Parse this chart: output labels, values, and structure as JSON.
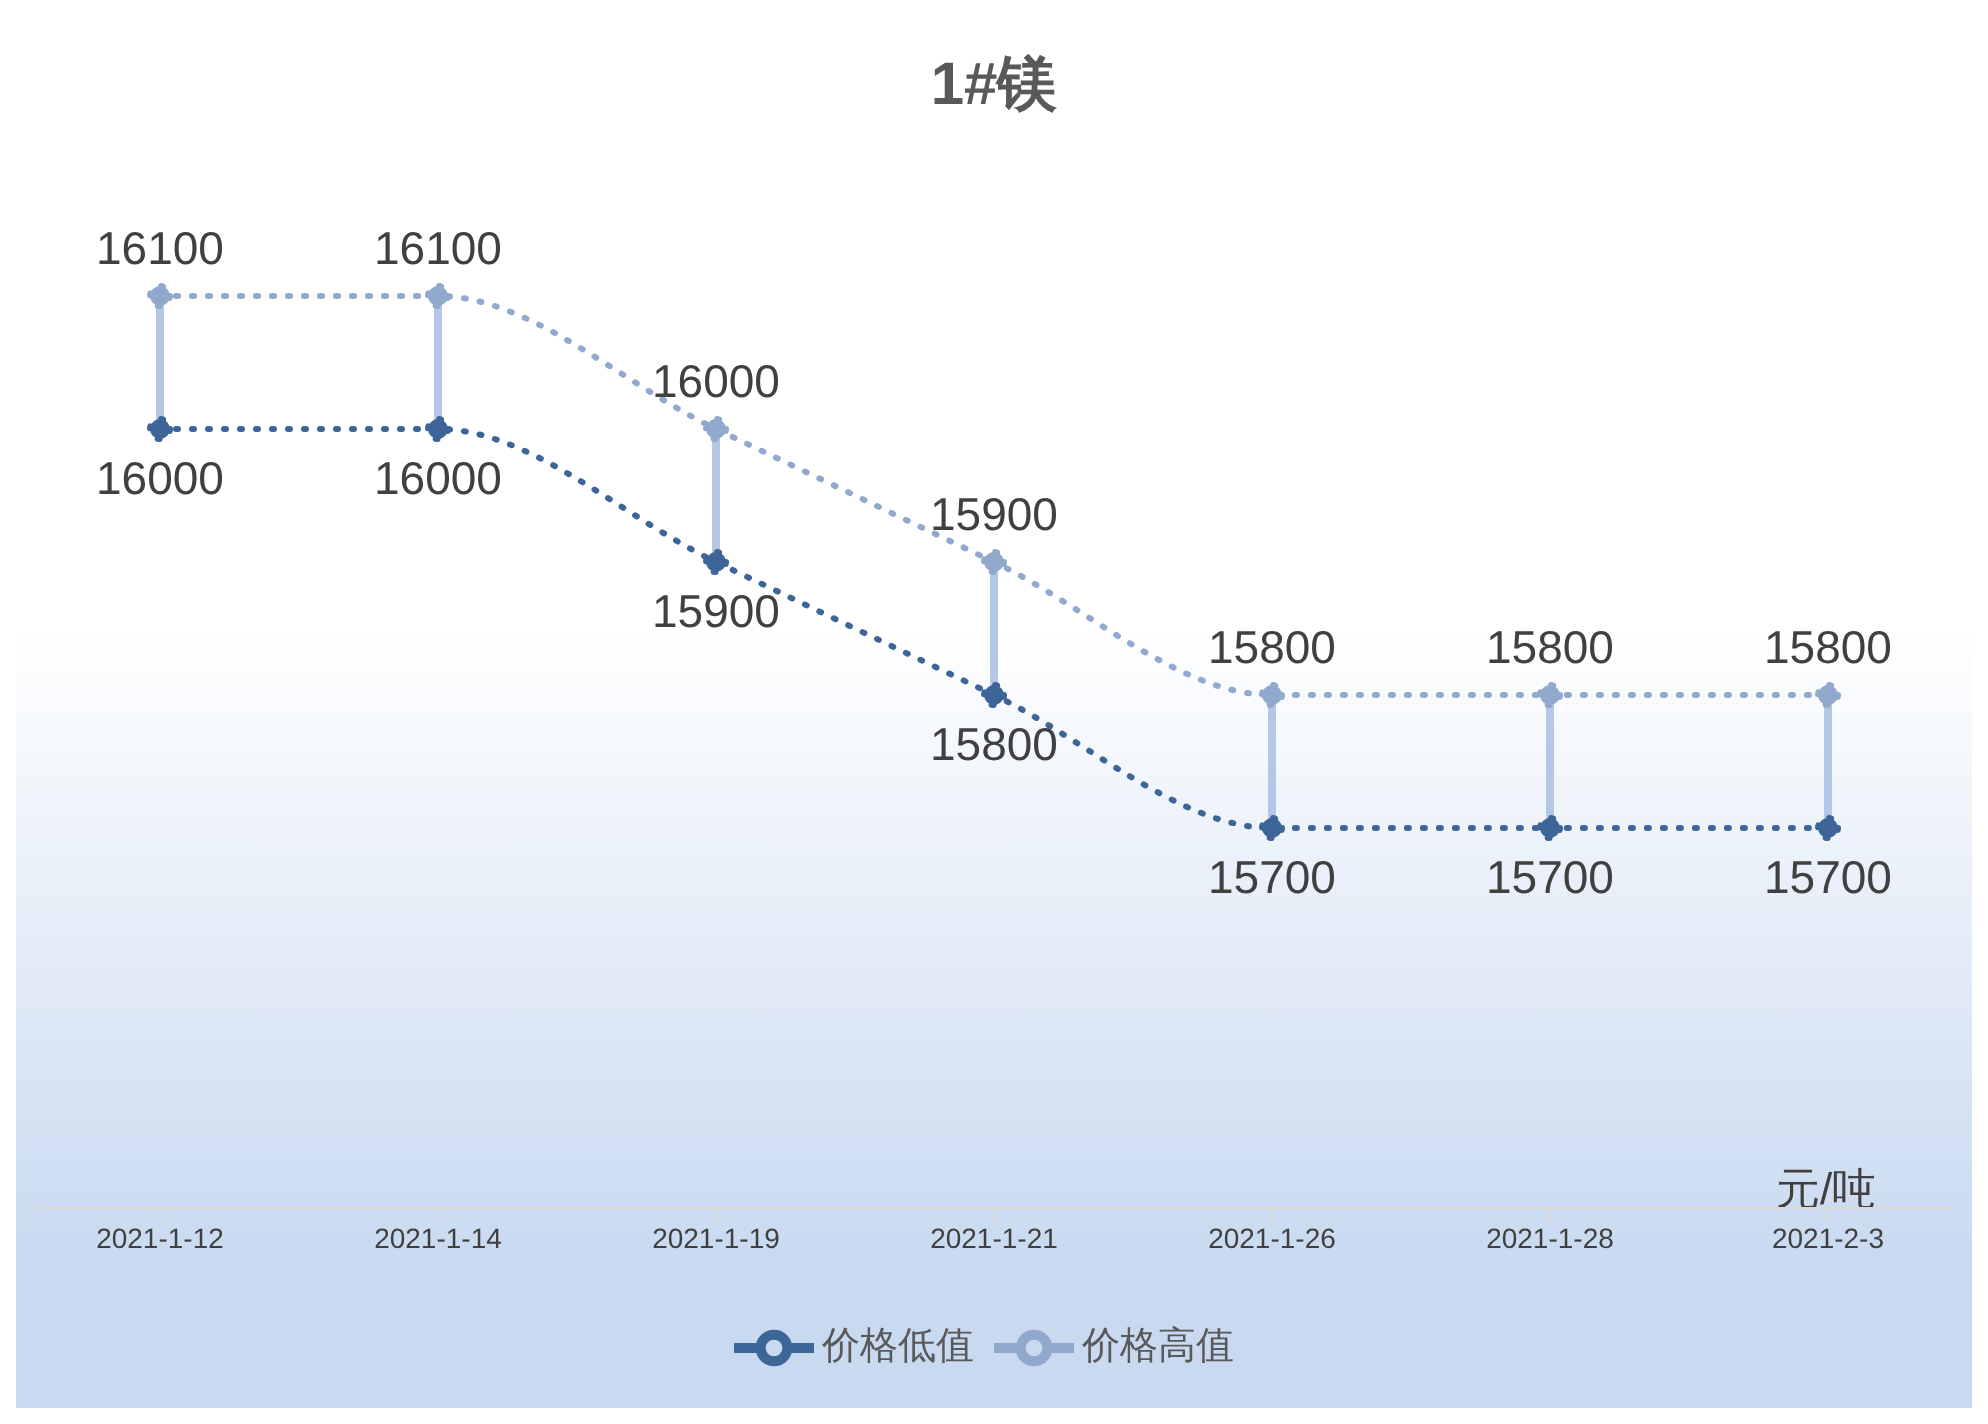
{
  "chart_data": {
    "type": "line",
    "title": "1#镁",
    "annotations": [
      "元/吨"
    ],
    "categories": [
      "2021-1-12",
      "2021-1-14",
      "2021-1-19",
      "2021-1-21",
      "2021-1-26",
      "2021-1-28",
      "2021-2-3"
    ],
    "series": [
      {
        "name": "价格低值",
        "color": "#3d6597",
        "values": [
          16000,
          16000,
          15900,
          15800,
          15700,
          15700,
          15700
        ]
      },
      {
        "name": "价格高值",
        "color": "#91a9cd",
        "values": [
          16100,
          16100,
          16000,
          15900,
          15800,
          15800,
          15800
        ]
      }
    ],
    "tick_labels": "x",
    "grid": false,
    "legend": "bottom",
    "marker": "circle",
    "line_style": "dotted",
    "data_labels": true
  }
}
